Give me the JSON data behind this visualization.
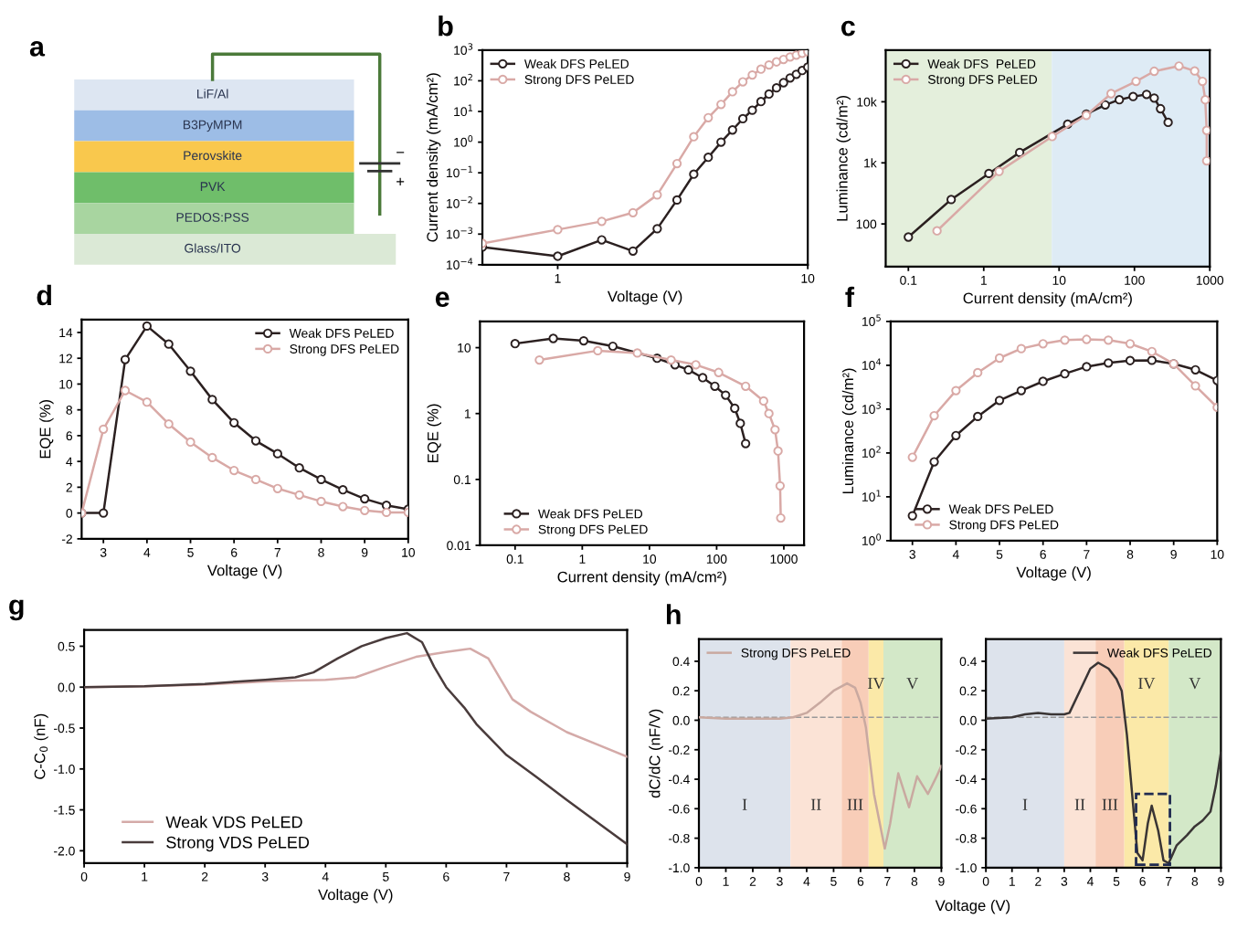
{
  "chart_data": [
    {
      "type": "other",
      "title": "a",
      "categories": [
        "LiF/Al",
        "B3PyMPM",
        "Perovskite",
        "PVK",
        "PEDOS:PSS",
        "Glass/ITO"
      ],
      "colors": [
        "#dde6f2",
        "#9dbde6",
        "#f9c84d",
        "#6fbe6a",
        "#a8d5a0",
        "#dbe9d6"
      ],
      "annotations": [
        "−",
        "+"
      ]
    },
    {
      "type": "line",
      "title": "b",
      "xlabel": "Voltage (V)",
      "ylabel": "Current density (mA/cm²)",
      "log": "xy",
      "marker": "circle",
      "legend": "top left",
      "xlim": [
        0.5,
        10
      ],
      "ylim": [
        0.0001,
        1000
      ],
      "xticks": [
        1,
        10
      ],
      "yticks": [
        {
          "value": 0.0001,
          "label": "10$^{−4}$"
        },
        {
          "value": 0.001,
          "label": "10$^{−3}$"
        },
        {
          "value": 0.01,
          "label": "10$^{−2}$"
        },
        {
          "value": 0.1,
          "label": "10$^{−1}$"
        },
        {
          "value": 1,
          "label": "10$^{0}$"
        },
        {
          "value": 10,
          "label": "10$^{1}$"
        },
        {
          "value": 100,
          "label": "10$^{2}$"
        },
        {
          "value": 1000,
          "label": "10$^{3}$"
        }
      ],
      "series": [
        {
          "name": "Weak DFS PeLED",
          "color": "#2b2020",
          "x": [
            0.5,
            1,
            1.5,
            2,
            2.5,
            3,
            3.5,
            4,
            4.5,
            5,
            5.5,
            6,
            6.5,
            7,
            7.5,
            8,
            8.5,
            9,
            9.5,
            10
          ],
          "values": [
            0.00038,
            0.00019,
            0.00065,
            0.00028,
            0.0015,
            0.013,
            0.09,
            0.32,
            1.0,
            2.5,
            5.8,
            11,
            21,
            37,
            59,
            87,
            124,
            163,
            217,
            280
          ]
        },
        {
          "name": "Strong DFS PeLED",
          "color": "#d9a9a6",
          "x": [
            0.5,
            1,
            1.5,
            2,
            2.5,
            3,
            3.5,
            4,
            4.5,
            5,
            5.5,
            6,
            6.5,
            7,
            7.5,
            8,
            8.5,
            9,
            9.5,
            10
          ],
          "values": [
            0.0005,
            0.0014,
            0.0026,
            0.005,
            0.019,
            0.2,
            1.5,
            6.3,
            17,
            44,
            93,
            155,
            240,
            330,
            415,
            500,
            600,
            690,
            790,
            890
          ]
        }
      ]
    },
    {
      "type": "line",
      "title": "c",
      "xlabel": "Current density (mA/cm²)",
      "ylabel": "Luminance (cd/m²)",
      "log": "xy",
      "marker": "circle",
      "legend": "top left",
      "xlim": [
        0.05,
        1000
      ],
      "ylim": [
        20,
        70000
      ],
      "xticks": [
        0.1,
        1,
        10,
        100,
        1000
      ],
      "yticks": [
        {
          "value": 100,
          "label": "100"
        },
        {
          "value": 1000,
          "label": "1k"
        },
        {
          "value": 10000,
          "label": "10k"
        }
      ],
      "bands": [
        {
          "axis": "x",
          "from": 0.05,
          "to": 8,
          "label": null,
          "color": "#e4efdc"
        },
        {
          "axis": "x",
          "from": 8,
          "to": 1000,
          "label": null,
          "color": "#deebf5"
        }
      ],
      "series": [
        {
          "name": "Weak DFS  PeLED",
          "color": "#2b2020",
          "x": [
            0.1,
            0.37,
            1.17,
            3.0,
            13,
            23,
            41,
            63,
            96,
            145,
            183,
            222,
            280
          ],
          "values": [
            61,
            251,
            670,
            1480,
            4300,
            6300,
            8900,
            10800,
            12200,
            13200,
            11500,
            7700,
            4600
          ]
        },
        {
          "name": "Strong DFS PeLED",
          "color": "#d9a9a6",
          "x": [
            0.24,
            1.6,
            8.1,
            23,
            49,
            105,
            183,
            390,
            630,
            800,
            870,
            910,
            910
          ],
          "values": [
            77,
            725,
            2700,
            6000,
            13600,
            21600,
            31600,
            38500,
            32000,
            21600,
            10800,
            3400,
            1080
          ]
        }
      ]
    },
    {
      "type": "line",
      "title": "d",
      "xlabel": "Voltage (V)",
      "ylabel": "EQE (%)",
      "marker": "circle",
      "legend": "top right",
      "xlim": [
        2.5,
        10
      ],
      "ylim": [
        -2,
        15
      ],
      "xticks": [
        3,
        4,
        5,
        6,
        7,
        8,
        9,
        10
      ],
      "yticks": [
        -2,
        0,
        2,
        4,
        6,
        8,
        10,
        12,
        14
      ],
      "series": [
        {
          "name": "Weak DFS PeLED",
          "color": "#2b2020",
          "x": [
            2.5,
            3,
            3.5,
            4,
            4.5,
            5,
            5.5,
            6,
            6.5,
            7,
            7.5,
            8,
            8.5,
            9,
            9.5,
            10
          ],
          "values": [
            0,
            0,
            11.9,
            14.5,
            13.1,
            11,
            8.8,
            7.0,
            5.6,
            4.6,
            3.5,
            2.6,
            1.8,
            1.1,
            0.6,
            0.3
          ]
        },
        {
          "name": "Strong DFS PeLED",
          "color": "#d9a9a6",
          "x": [
            2.5,
            3,
            3.5,
            4,
            4.5,
            5,
            5.5,
            6,
            6.5,
            7,
            7.5,
            8,
            8.5,
            9,
            9.5,
            10
          ],
          "values": [
            0,
            6.5,
            9.5,
            8.6,
            6.9,
            5.5,
            4.3,
            3.3,
            2.6,
            1.9,
            1.4,
            0.9,
            0.5,
            0.2,
            0.05,
            0.05
          ]
        }
      ]
    },
    {
      "type": "line",
      "title": "e",
      "xlabel": "Current density (mA/cm²)",
      "ylabel": "EQE (%)",
      "log": "xy",
      "marker": "circle",
      "legend": "bottom left",
      "xlim": [
        0.03,
        2000
      ],
      "ylim": [
        0.01,
        25
      ],
      "xticks": [
        0.1,
        1,
        10,
        100,
        1000
      ],
      "yticks": [
        0.01,
        0.1,
        1,
        10
      ],
      "series": [
        {
          "name": "Weak DFS PeLED",
          "color": "#2b2020",
          "x": [
            0.1,
            0.37,
            1.05,
            2.85,
            13,
            24,
            38,
            62,
            94,
            136,
            186,
            225,
            270
          ],
          "values": [
            11.5,
            13.8,
            12.7,
            10.5,
            6.9,
            5.5,
            4.6,
            3.5,
            2.6,
            1.9,
            1.2,
            0.71,
            0.35
          ]
        },
        {
          "name": "Strong DFS PeLED",
          "color": "#d9a9a6",
          "x": [
            0.23,
            1.7,
            6.6,
            21,
            49,
            107,
            270,
            500,
            600,
            740,
            820,
            880,
            900
          ],
          "values": [
            6.5,
            9.0,
            8.3,
            6.5,
            5.5,
            4.2,
            2.6,
            1.55,
            1.0,
            0.57,
            0.27,
            0.08,
            0.026
          ]
        }
      ]
    },
    {
      "type": "line",
      "title": "f",
      "xlabel": "Voltage (V)",
      "ylabel": "Luminance (cd/m²)",
      "log": "y",
      "marker": "circle",
      "legend": "bottom left",
      "xlim": [
        2.5,
        10
      ],
      "ylim": [
        1,
        100000
      ],
      "xticks": [
        3,
        4,
        5,
        6,
        7,
        8,
        9,
        10
      ],
      "yticks": [
        {
          "value": 1,
          "label": "10$^{0}$"
        },
        {
          "value": 10,
          "label": "10$^{1}$"
        },
        {
          "value": 100,
          "label": "10$^{2}$"
        },
        {
          "value": 1000,
          "label": "10$^{3}$"
        },
        {
          "value": 10000,
          "label": "10$^{4}$"
        },
        {
          "value": 100000,
          "label": "10$^{5}$"
        }
      ],
      "series": [
        {
          "name": "Weak DFS PeLED",
          "color": "#2b2020",
          "x": [
            3,
            3.5,
            4,
            4.5,
            5,
            5.5,
            6,
            6.5,
            7,
            7.5,
            8,
            8.5,
            9,
            9.5,
            10
          ],
          "values": [
            3.7,
            63,
            250,
            680,
            1580,
            2650,
            4300,
            6400,
            9300,
            11300,
            12800,
            13000,
            10800,
            7900,
            4500
          ]
        },
        {
          "name": "Strong DFS PeLED",
          "color": "#d9a9a6",
          "x": [
            3,
            3.5,
            4,
            4.5,
            5,
            5.5,
            6,
            6.5,
            7,
            7.5,
            8,
            8.5,
            9,
            9.5,
            10
          ],
          "values": [
            80,
            710,
            2650,
            6800,
            14600,
            24000,
            31000,
            37500,
            39000,
            37500,
            31000,
            20600,
            10800,
            3400,
            1100
          ]
        }
      ]
    },
    {
      "type": "line",
      "title": "g",
      "xlabel": "Voltage (V)",
      "ylabel": "C-C$_{0}$ (nF)",
      "legend": "bottom left",
      "xlim": [
        0,
        9
      ],
      "ylim": [
        -2.15,
        0.7
      ],
      "xticks": [
        0,
        1,
        2,
        3,
        4,
        5,
        6,
        7,
        8,
        9
      ],
      "yticks": [
        {
          "value": -2,
          "label": "-2.0"
        },
        -1.5,
        {
          "value": -1,
          "label": "-1.0"
        },
        -0.5,
        {
          "value": 0,
          "label": "0.0"
        },
        0.5
      ],
      "series": [
        {
          "name": "Weak VDS PeLED",
          "color": "#d4aaa8",
          "x": [
            0,
            1,
            2,
            3,
            3.5,
            4,
            4.5,
            5,
            5.5,
            6,
            6.4,
            6.7,
            6.9,
            7.1,
            7.4,
            8,
            8.5,
            9
          ],
          "values": [
            0,
            0.01,
            0.03,
            0.07,
            0.08,
            0.09,
            0.12,
            0.25,
            0.37,
            0.43,
            0.47,
            0.35,
            0.1,
            -0.15,
            -0.3,
            -0.55,
            -0.7,
            -0.85
          ]
        },
        {
          "name": "Strong VDS PeLED",
          "color": "#4a3c3c",
          "x": [
            0,
            1,
            2,
            3,
            3.5,
            3.8,
            4.2,
            4.6,
            5,
            5.35,
            5.6,
            5.8,
            6,
            6.3,
            6.5,
            7,
            7.5,
            8,
            8.5,
            9
          ],
          "values": [
            0,
            0.01,
            0.04,
            0.09,
            0.12,
            0.18,
            0.35,
            0.5,
            0.6,
            0.66,
            0.55,
            0.25,
            0.0,
            -0.25,
            -0.45,
            -0.83,
            -1.1,
            -1.38,
            -1.65,
            -1.92
          ]
        }
      ]
    },
    {
      "type": "line",
      "title": "h",
      "xlabel": "Voltage (V)",
      "ylabel": "dC/dC (nF/V)",
      "legend": "top left",
      "xlim": [
        0,
        9
      ],
      "ylim": [
        -1.0,
        0.55
      ],
      "xticks": [
        0,
        1,
        2,
        3,
        4,
        5,
        6,
        7,
        8,
        9
      ],
      "yticks": [
        {
          "value": -1,
          "label": "-1.0"
        },
        -0.8,
        -0.6,
        -0.4,
        -0.2,
        {
          "value": 0,
          "label": "0.0"
        },
        0.2,
        0.4
      ],
      "bands": [
        {
          "axis": "x",
          "from": 0,
          "to": 3.4,
          "label": null,
          "color": "#dde3ec"
        },
        {
          "axis": "x",
          "from": 3.4,
          "to": 5.3,
          "label": null,
          "color": "#fbe3d6"
        },
        {
          "axis": "x",
          "from": 5.3,
          "to": 6.3,
          "label": null,
          "color": "#f8cdb8"
        },
        {
          "axis": "x",
          "from": 6.3,
          "to": 6.85,
          "label": null,
          "color": "#fbe9a8"
        },
        {
          "axis": "x",
          "from": 6.85,
          "to": 9,
          "label": null,
          "color": "#d3e8c8"
        }
      ],
      "ref_lines": [
        {
          "axis": "y",
          "value": 0.02,
          "label": null,
          "color": "#999999",
          "line_style": "dashed"
        }
      ],
      "annotations": [
        "I",
        "II",
        "III",
        "IV",
        "V"
      ],
      "series": [
        {
          "name": "Strong DFS PeLED",
          "color": "#c9a9a0",
          "x": [
            0,
            1,
            2,
            3,
            3.5,
            4,
            4.5,
            5,
            5.5,
            5.8,
            6,
            6.2,
            6.5,
            6.9,
            7.1,
            7.4,
            7.8,
            8.1,
            8.5,
            8.8,
            9
          ],
          "values": [
            0.02,
            0.01,
            0.01,
            0.01,
            0.02,
            0.05,
            0.12,
            0.2,
            0.25,
            0.22,
            0.12,
            -0.05,
            -0.5,
            -0.87,
            -0.7,
            -0.36,
            -0.59,
            -0.38,
            -0.5,
            -0.39,
            -0.31
          ]
        }
      ]
    },
    {
      "type": "line",
      "legend": "top right",
      "xlim": [
        0,
        9
      ],
      "ylim": [
        -1.0,
        0.55
      ],
      "xticks": [
        0,
        1,
        2,
        3,
        4,
        5,
        6,
        7,
        8,
        9
      ],
      "yticks": [
        {
          "value": -1,
          "label": "-1.0"
        },
        -0.8,
        -0.6,
        -0.4,
        -0.2,
        {
          "value": 0,
          "label": "0.0"
        },
        0.2,
        0.4
      ],
      "bands": [
        {
          "axis": "x",
          "from": 0,
          "to": 3.0,
          "label": null,
          "color": "#dde3ec"
        },
        {
          "axis": "x",
          "from": 3.0,
          "to": 4.2,
          "label": null,
          "color": "#fbe3d6"
        },
        {
          "axis": "x",
          "from": 4.2,
          "to": 5.3,
          "label": null,
          "color": "#f8cdb8"
        },
        {
          "axis": "x",
          "from": 5.3,
          "to": 7.0,
          "label": null,
          "color": "#fbe9a8"
        },
        {
          "axis": "x",
          "from": 7.0,
          "to": 9,
          "label": null,
          "color": "#d3e8c8"
        }
      ],
      "ref_lines": [
        {
          "axis": "y",
          "value": 0.02,
          "label": null,
          "color": "#999999",
          "line_style": "dashed"
        }
      ],
      "annotations": [
        "I",
        "II",
        "III",
        "IV",
        "V"
      ],
      "series": [
        {
          "name": "Weak DFS PeLED",
          "color": "#3a3535",
          "x": [
            0,
            1,
            1.5,
            2,
            2.5,
            3,
            3.2,
            3.6,
            4,
            4.3,
            4.7,
            5,
            5.2,
            5.4,
            5.6,
            5.8,
            6,
            6.2,
            6.35,
            6.6,
            6.8,
            7,
            7.3,
            7.7,
            8,
            8.3,
            8.6,
            8.8,
            9
          ],
          "values": [
            0.01,
            0.02,
            0.04,
            0.05,
            0.04,
            0.04,
            0.05,
            0.2,
            0.35,
            0.39,
            0.35,
            0.28,
            0.2,
            -0.1,
            -0.5,
            -0.9,
            -0.95,
            -0.7,
            -0.58,
            -0.75,
            -0.95,
            -0.97,
            -0.85,
            -0.78,
            -0.72,
            -0.68,
            -0.62,
            -0.45,
            -0.22
          ]
        }
      ]
    }
  ]
}
